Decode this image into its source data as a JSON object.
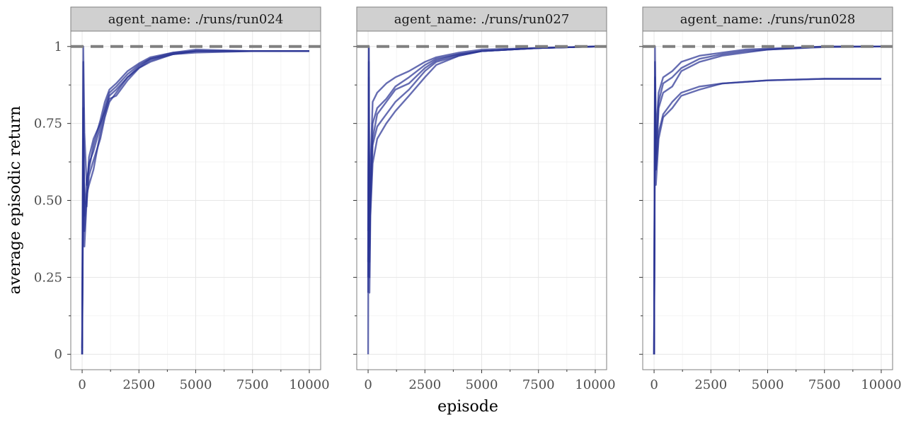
{
  "chart_data": {
    "type": "line",
    "ylabel": "average episodic return",
    "xlabel": "episode",
    "xlim": [
      -500,
      10500
    ],
    "ylim": [
      -0.05,
      1.05
    ],
    "x_ticks": [
      0,
      2500,
      5000,
      7500,
      10000
    ],
    "x_tick_labels": [
      "0",
      "2500",
      "5000",
      "7500",
      "10000"
    ],
    "y_ticks": [
      0,
      0.25,
      0.5,
      0.75,
      1
    ],
    "y_tick_labels": [
      "0",
      "0.25",
      "0.50",
      "0.75",
      "1"
    ],
    "reference_line": {
      "y": 1,
      "style": "dashed",
      "color": "#808080"
    },
    "line_color": "#2b3594",
    "grid": true,
    "panels": [
      {
        "facet_label": "agent_name: ./runs/run024",
        "series": [
          {
            "values": [
              [
                0,
                0
              ],
              [
                50,
                1
              ],
              [
                100,
                0.72
              ],
              [
                200,
                0.55
              ],
              [
                300,
                0.62
              ],
              [
                500,
                0.66
              ],
              [
                800,
                0.74
              ],
              [
                1000,
                0.8
              ],
              [
                1200,
                0.85
              ],
              [
                1500,
                0.87
              ],
              [
                2000,
                0.91
              ],
              [
                2500,
                0.94
              ],
              [
                3000,
                0.96
              ],
              [
                4000,
                0.975
              ],
              [
                5000,
                0.985
              ],
              [
                7500,
                0.985
              ],
              [
                10000,
                0.985
              ]
            ]
          },
          {
            "values": [
              [
                0,
                0
              ],
              [
                50,
                0.95
              ],
              [
                100,
                0.35
              ],
              [
                200,
                0.5
              ],
              [
                300,
                0.58
              ],
              [
                500,
                0.63
              ],
              [
                800,
                0.7
              ],
              [
                1000,
                0.77
              ],
              [
                1200,
                0.82
              ],
              [
                1500,
                0.85
              ],
              [
                2000,
                0.9
              ],
              [
                2500,
                0.93
              ],
              [
                3000,
                0.95
              ],
              [
                4000,
                0.975
              ],
              [
                5000,
                0.98
              ],
              [
                7500,
                0.985
              ],
              [
                10000,
                0.985
              ]
            ]
          },
          {
            "values": [
              [
                0,
                0
              ],
              [
                50,
                0.6
              ],
              [
                100,
                0.45
              ],
              [
                200,
                0.57
              ],
              [
                300,
                0.6
              ],
              [
                500,
                0.68
              ],
              [
                800,
                0.76
              ],
              [
                1000,
                0.82
              ],
              [
                1200,
                0.86
              ],
              [
                1500,
                0.88
              ],
              [
                2000,
                0.92
              ],
              [
                2500,
                0.945
              ],
              [
                3000,
                0.965
              ],
              [
                4000,
                0.98
              ],
              [
                5000,
                0.99
              ],
              [
                7500,
                0.985
              ],
              [
                10000,
                0.985
              ]
            ]
          },
          {
            "values": [
              [
                0,
                0
              ],
              [
                50,
                0.8
              ],
              [
                100,
                0.4
              ],
              [
                200,
                0.52
              ],
              [
                300,
                0.55
              ],
              [
                500,
                0.6
              ],
              [
                800,
                0.72
              ],
              [
                1000,
                0.78
              ],
              [
                1200,
                0.83
              ],
              [
                1500,
                0.84
              ],
              [
                2000,
                0.89
              ],
              [
                2500,
                0.93
              ],
              [
                3000,
                0.955
              ],
              [
                4000,
                0.975
              ],
              [
                5000,
                0.985
              ],
              [
                7500,
                0.985
              ],
              [
                10000,
                0.985
              ]
            ]
          },
          {
            "values": [
              [
                0,
                0.02
              ],
              [
                50,
                0.7
              ],
              [
                100,
                0.5
              ],
              [
                200,
                0.48
              ],
              [
                300,
                0.64
              ],
              [
                500,
                0.7
              ],
              [
                800,
                0.75
              ],
              [
                1000,
                0.79
              ],
              [
                1200,
                0.84
              ],
              [
                1500,
                0.86
              ],
              [
                2000,
                0.9
              ],
              [
                2500,
                0.935
              ],
              [
                3000,
                0.96
              ],
              [
                4000,
                0.98
              ],
              [
                5000,
                0.985
              ],
              [
                7500,
                0.985
              ],
              [
                10000,
                0.985
              ]
            ]
          }
        ]
      },
      {
        "facet_label": "agent_name: ./runs/run027",
        "series": [
          {
            "values": [
              [
                0,
                0.3
              ],
              [
                30,
                1
              ],
              [
                60,
                0.25
              ],
              [
                100,
                0.55
              ],
              [
                200,
                0.75
              ],
              [
                400,
                0.8
              ],
              [
                800,
                0.83
              ],
              [
                1200,
                0.87
              ],
              [
                1800,
                0.9
              ],
              [
                2500,
                0.94
              ],
              [
                3000,
                0.96
              ],
              [
                4000,
                0.975
              ],
              [
                5000,
                0.985
              ],
              [
                7500,
                0.995
              ],
              [
                10000,
                1
              ]
            ]
          },
          {
            "values": [
              [
                0,
                0
              ],
              [
                30,
                0.9
              ],
              [
                60,
                0.2
              ],
              [
                100,
                0.45
              ],
              [
                200,
                0.62
              ],
              [
                400,
                0.7
              ],
              [
                800,
                0.75
              ],
              [
                1200,
                0.79
              ],
              [
                1800,
                0.84
              ],
              [
                2500,
                0.9
              ],
              [
                3000,
                0.94
              ],
              [
                4000,
                0.97
              ],
              [
                5000,
                0.985
              ],
              [
                7500,
                0.995
              ],
              [
                10000,
                1
              ]
            ]
          },
          {
            "values": [
              [
                0,
                0.2
              ],
              [
                30,
                0.95
              ],
              [
                60,
                0.3
              ],
              [
                100,
                0.5
              ],
              [
                200,
                0.7
              ],
              [
                400,
                0.78
              ],
              [
                800,
                0.82
              ],
              [
                1200,
                0.86
              ],
              [
                1800,
                0.88
              ],
              [
                2500,
                0.93
              ],
              [
                3000,
                0.955
              ],
              [
                4000,
                0.975
              ],
              [
                5000,
                0.985
              ],
              [
                7500,
                0.995
              ],
              [
                10000,
                1
              ]
            ]
          },
          {
            "values": [
              [
                0,
                0.4
              ],
              [
                30,
                0.8
              ],
              [
                60,
                0.35
              ],
              [
                100,
                0.6
              ],
              [
                200,
                0.82
              ],
              [
                400,
                0.85
              ],
              [
                800,
                0.88
              ],
              [
                1200,
                0.9
              ],
              [
                1800,
                0.92
              ],
              [
                2500,
                0.95
              ],
              [
                3000,
                0.965
              ],
              [
                4000,
                0.98
              ],
              [
                5000,
                0.99
              ],
              [
                7500,
                0.995
              ],
              [
                10000,
                1
              ]
            ]
          },
          {
            "values": [
              [
                0,
                0.25
              ],
              [
                30,
                1
              ],
              [
                60,
                0.4
              ],
              [
                100,
                0.48
              ],
              [
                200,
                0.68
              ],
              [
                400,
                0.74
              ],
              [
                800,
                0.78
              ],
              [
                1200,
                0.82
              ],
              [
                1800,
                0.86
              ],
              [
                2500,
                0.92
              ],
              [
                3000,
                0.95
              ],
              [
                4000,
                0.97
              ],
              [
                5000,
                0.985
              ],
              [
                7500,
                0.995
              ],
              [
                10000,
                1
              ]
            ]
          }
        ]
      },
      {
        "facet_label": "agent_name: ./runs/run028",
        "series": [
          {
            "values": [
              [
                0,
                0
              ],
              [
                40,
                1
              ],
              [
                80,
                0.7
              ],
              [
                200,
                0.85
              ],
              [
                400,
                0.9
              ],
              [
                800,
                0.92
              ],
              [
                1200,
                0.95
              ],
              [
                2000,
                0.97
              ],
              [
                3000,
                0.98
              ],
              [
                4000,
                0.99
              ],
              [
                5000,
                0.993
              ],
              [
                7500,
                1
              ],
              [
                10000,
                1
              ]
            ]
          },
          {
            "values": [
              [
                0,
                0
              ],
              [
                40,
                0.95
              ],
              [
                80,
                0.65
              ],
              [
                200,
                0.82
              ],
              [
                400,
                0.88
              ],
              [
                800,
                0.9
              ],
              [
                1200,
                0.93
              ],
              [
                2000,
                0.96
              ],
              [
                3000,
                0.975
              ],
              [
                4000,
                0.985
              ],
              [
                5000,
                0.99
              ],
              [
                7500,
                1
              ],
              [
                10000,
                1
              ]
            ]
          },
          {
            "values": [
              [
                0,
                0
              ],
              [
                40,
                0.9
              ],
              [
                80,
                0.6
              ],
              [
                200,
                0.8
              ],
              [
                400,
                0.85
              ],
              [
                800,
                0.87
              ],
              [
                1200,
                0.92
              ],
              [
                2000,
                0.95
              ],
              [
                3000,
                0.97
              ],
              [
                4000,
                0.98
              ],
              [
                5000,
                0.99
              ],
              [
                7500,
                0.998
              ],
              [
                10000,
                1
              ]
            ]
          },
          {
            "values": [
              [
                0,
                0
              ],
              [
                40,
                0.85
              ],
              [
                80,
                0.6
              ],
              [
                200,
                0.72
              ],
              [
                400,
                0.78
              ],
              [
                800,
                0.82
              ],
              [
                1200,
                0.85
              ],
              [
                2000,
                0.87
              ],
              [
                3000,
                0.88
              ],
              [
                5000,
                0.89
              ],
              [
                7500,
                0.895
              ],
              [
                10000,
                0.895
              ]
            ]
          },
          {
            "values": [
              [
                0,
                0
              ],
              [
                40,
                0.8
              ],
              [
                80,
                0.55
              ],
              [
                200,
                0.7
              ],
              [
                400,
                0.77
              ],
              [
                800,
                0.8
              ],
              [
                1200,
                0.84
              ],
              [
                2000,
                0.86
              ],
              [
                3000,
                0.88
              ],
              [
                5000,
                0.89
              ],
              [
                7500,
                0.895
              ],
              [
                10000,
                0.895
              ]
            ]
          }
        ]
      }
    ]
  }
}
